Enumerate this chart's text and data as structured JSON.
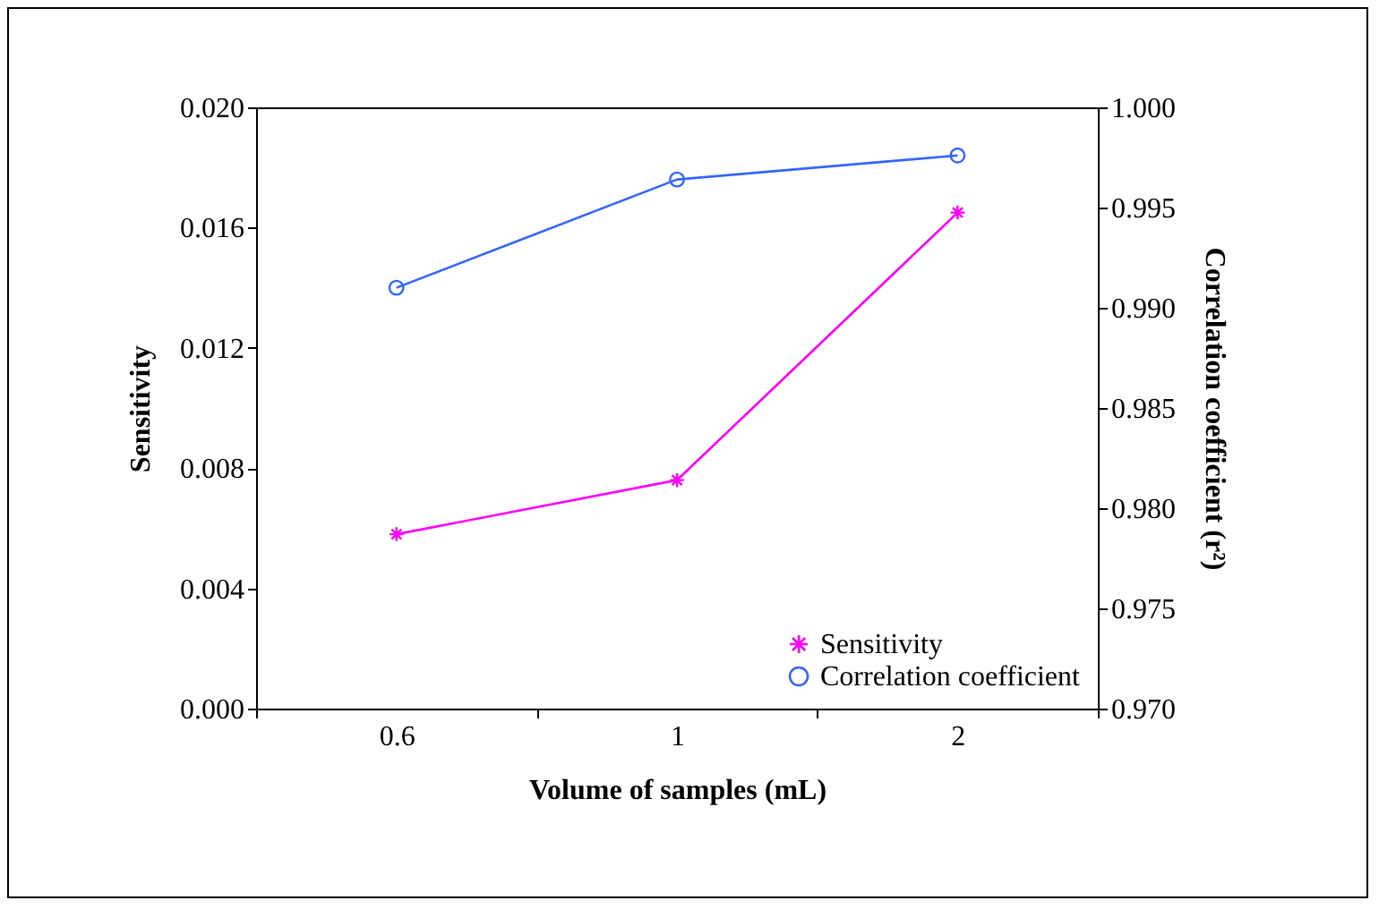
{
  "chart_data": {
    "type": "line",
    "xlabel": "Volume of samples (mL)",
    "ylabel": "Sensitivity",
    "y2label": "Correlation coefficient (r²)",
    "categories": [
      "0.6",
      "1",
      "2"
    ],
    "series": [
      {
        "name": "Sensitivity",
        "color": "#ff00ff",
        "values": [
          0.0058,
          0.0076,
          0.0165
        ],
        "marker": "cross"
      },
      {
        "name": "Correlation coefficient",
        "color": "#3366ff",
        "values": [
          0.991,
          0.9964,
          0.9976
        ],
        "marker": "circle",
        "axis": "y2"
      }
    ],
    "ylim": [
      0,
      0.02
    ],
    "yticks": [
      {
        "value": 0,
        "label": "0.000"
      },
      {
        "value": 0.004,
        "label": "0.004"
      },
      {
        "value": 0.008,
        "label": "0.008"
      },
      {
        "value": 0.012,
        "label": "0.012"
      },
      {
        "value": 0.016,
        "label": "0.016"
      },
      {
        "value": 0.02,
        "label": "0.020"
      }
    ],
    "y2lim": [
      0.97,
      1
    ],
    "y2ticks": [
      {
        "value": 0.97,
        "label": "0.970"
      },
      {
        "value": 0.975,
        "label": "0.975"
      },
      {
        "value": 0.98,
        "label": "0.980"
      },
      {
        "value": 0.985,
        "label": "0.985"
      },
      {
        "value": 0.99,
        "label": "0.990"
      },
      {
        "value": 0.995,
        "label": "0.995"
      },
      {
        "value": 1,
        "label": "1.000"
      }
    ],
    "grid": false,
    "legend": "bottom right",
    "line_style": "solid"
  }
}
